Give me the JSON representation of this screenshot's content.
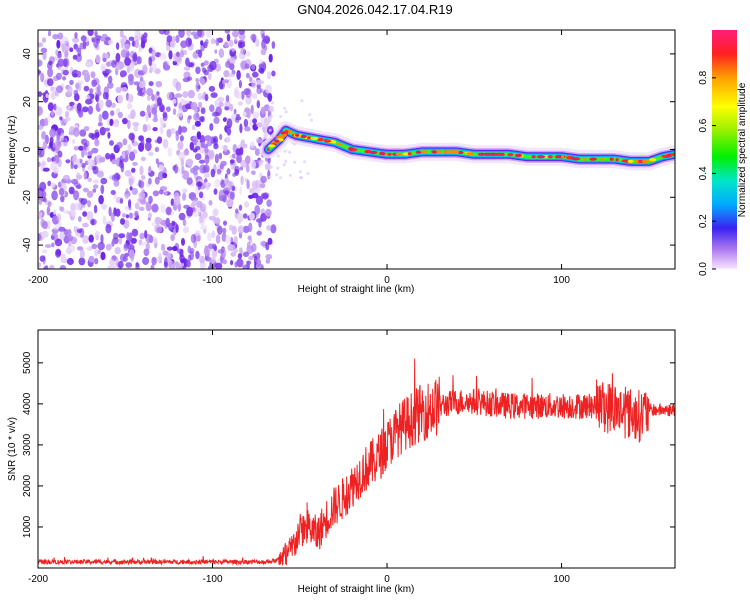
{
  "title": "GN04.2026.042.17.04.R19",
  "chart_data": [
    {
      "type": "heatmap",
      "xlabel": "Height of straight line (km)",
      "ylabel": "Frequency (Hz)",
      "xlim": [
        -200,
        165
      ],
      "ylim": [
        -50,
        50
      ],
      "xticks": [
        -200,
        -100,
        0,
        100
      ],
      "yticks": [
        -40,
        -20,
        0,
        20,
        40
      ],
      "noise_region_x": [
        -200,
        -65
      ],
      "track": {
        "x": [
          -68,
          -62,
          -58,
          -52,
          -45,
          -38,
          -30,
          -20,
          -10,
          0,
          10,
          20,
          30,
          40,
          50,
          60,
          70,
          80,
          90,
          100,
          110,
          120,
          130,
          140,
          150,
          158,
          165
        ],
        "y": [
          0,
          4,
          8,
          6,
          5,
          4,
          3,
          0,
          -1,
          -2,
          -2,
          -1,
          -1,
          -1,
          -2,
          -2,
          -2,
          -3,
          -3,
          -3,
          -4,
          -4,
          -4,
          -5,
          -5,
          -3,
          -2
        ]
      },
      "colorbar": {
        "label": "Normalized spectral amplitude",
        "range": [
          0,
          1
        ],
        "ticks": [
          "0.0",
          "0.2",
          "0.4",
          "0.6",
          "0.8"
        ]
      },
      "grid": false
    },
    {
      "type": "line",
      "xlabel": "Height of straight line (km)",
      "ylabel": "SNR (10 * v/v)",
      "xlim": [
        -200,
        165
      ],
      "ylim": [
        0,
        5800
      ],
      "xticks": [
        -200,
        -100,
        0,
        100
      ],
      "yticks": [
        1000,
        2000,
        3000,
        4000,
        5000
      ],
      "series": [
        {
          "color": "#ee2222",
          "x": [
            -200,
            -150,
            -100,
            -70,
            -60,
            -55,
            -50,
            -45,
            -40,
            -35,
            -30,
            -25,
            -20,
            -15,
            -10,
            -5,
            0,
            5,
            10,
            20,
            30,
            40,
            50,
            60,
            70,
            80,
            90,
            100,
            110,
            120,
            130,
            140,
            145,
            150,
            165
          ],
          "y": [
            150,
            150,
            150,
            150,
            200,
            400,
            900,
            1000,
            800,
            1200,
            1500,
            1700,
            2000,
            2300,
            2500,
            2700,
            3000,
            3300,
            3500,
            3800,
            3950,
            4050,
            4050,
            4000,
            3950,
            3950,
            3950,
            3950,
            3950,
            3950,
            3900,
            3750,
            3700,
            3850,
            3850
          ]
        }
      ],
      "grid": false
    }
  ]
}
